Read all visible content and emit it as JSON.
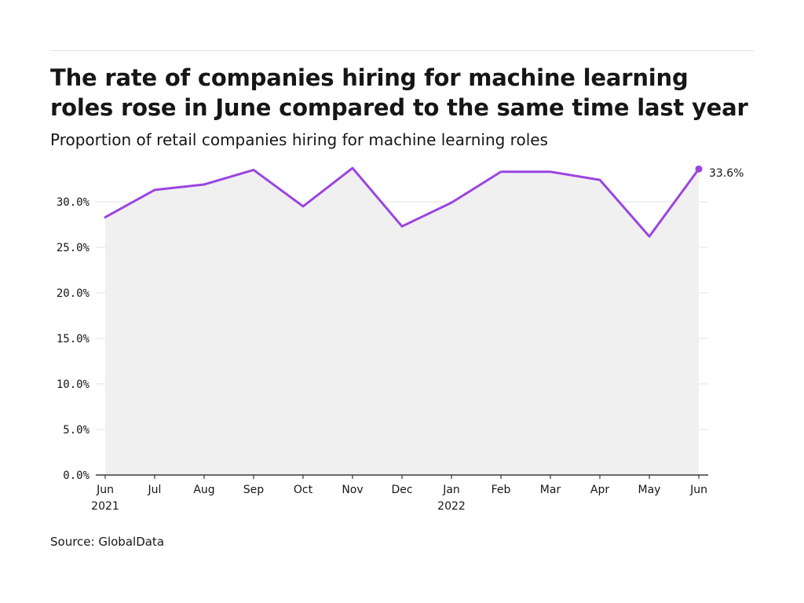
{
  "title": "The rate of companies hiring for machine learning roles rose in June compared to the same time last year",
  "subtitle": "Proportion of retail companies hiring for machine learning roles",
  "source": "Source: GlobalData",
  "chart_data": {
    "type": "area",
    "x": [
      "Jun 2021",
      "Jul 2021",
      "Aug 2021",
      "Sep 2021",
      "Oct 2021",
      "Nov 2021",
      "Dec 2021",
      "Jan 2022",
      "Feb 2022",
      "Mar 2022",
      "Apr 2022",
      "May 2022",
      "Jun 2022"
    ],
    "x_tick_labels": [
      {
        "month": "Jun",
        "year": "2021"
      },
      {
        "month": "Jul",
        "year": ""
      },
      {
        "month": "Aug",
        "year": ""
      },
      {
        "month": "Sep",
        "year": ""
      },
      {
        "month": "Oct",
        "year": ""
      },
      {
        "month": "Nov",
        "year": ""
      },
      {
        "month": "Dec",
        "year": ""
      },
      {
        "month": "Jan",
        "year": "2022"
      },
      {
        "month": "Feb",
        "year": ""
      },
      {
        "month": "Mar",
        "year": ""
      },
      {
        "month": "Apr",
        "year": ""
      },
      {
        "month": "May",
        "year": ""
      },
      {
        "month": "Jun",
        "year": ""
      }
    ],
    "values": [
      28.3,
      31.3,
      31.9,
      33.5,
      29.5,
      33.7,
      27.3,
      29.9,
      33.3,
      33.3,
      32.4,
      26.2,
      33.6
    ],
    "y_ticks": [
      "0.0%",
      "5.0%",
      "10.0%",
      "15.0%",
      "20.0%",
      "25.0%",
      "30.0%"
    ],
    "ylim": [
      0,
      30
    ],
    "end_label": "33.6%",
    "grid": true,
    "colors": {
      "line": "#9b45e0",
      "area": "#f0f0f0",
      "grid": "#e2e2e2",
      "axis": "#161616"
    }
  }
}
